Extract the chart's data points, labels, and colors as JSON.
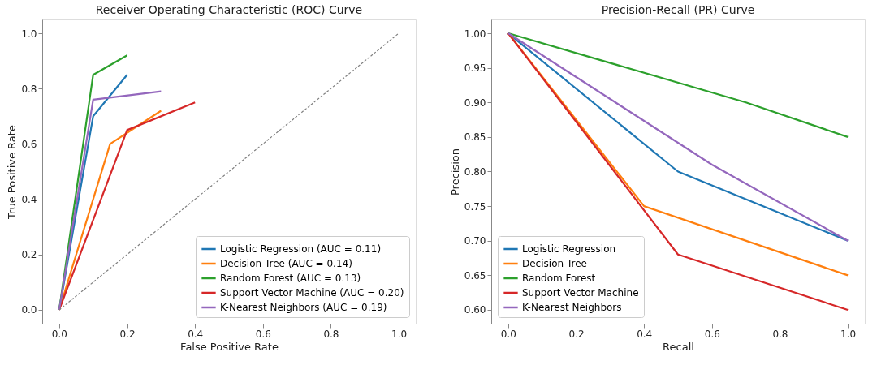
{
  "chart_data": [
    {
      "type": "line",
      "title": "Receiver Operating Characteristic (ROC) Curve",
      "xlabel": "False Positive Rate",
      "ylabel": "True Positive Rate",
      "xlim": [
        -0.05,
        1.05
      ],
      "ylim": [
        -0.05,
        1.05
      ],
      "xticks": [
        {
          "value": 0,
          "label": "0.0"
        },
        {
          "value": 0.2,
          "label": "0.2"
        },
        {
          "value": 0.4,
          "label": "0.4"
        },
        {
          "value": 0.6,
          "label": "0.6"
        },
        {
          "value": 0.8,
          "label": "0.8"
        },
        {
          "value": 1,
          "label": "1.0"
        }
      ],
      "yticks": [
        {
          "value": 0,
          "label": "0.0"
        },
        {
          "value": 0.2,
          "label": "0.2"
        },
        {
          "value": 0.4,
          "label": "0.4"
        },
        {
          "value": 0.6,
          "label": "0.6"
        },
        {
          "value": 0.8,
          "label": "0.8"
        },
        {
          "value": 1,
          "label": "1.0"
        }
      ],
      "grid": false,
      "legend": "bottom right",
      "line_style": "solid",
      "series": [
        {
          "name": "Logistic Regression (AUC = 0.11)",
          "color": "#1f77b4",
          "x": [
            0,
            0.1,
            0.2
          ],
          "values": [
            0,
            0.7,
            0.85
          ]
        },
        {
          "name": "Decision Tree (AUC = 0.14)",
          "color": "#ff7f0e",
          "x": [
            0,
            0.15,
            0.3
          ],
          "values": [
            0,
            0.6,
            0.72
          ]
        },
        {
          "name": "Random Forest (AUC = 0.13)",
          "color": "#2ca02c",
          "x": [
            0,
            0.1,
            0.2
          ],
          "values": [
            0,
            0.85,
            0.92
          ]
        },
        {
          "name": "Support Vector Machine (AUC = 0.20)",
          "color": "#d62728",
          "x": [
            0,
            0.2,
            0.4
          ],
          "values": [
            0,
            0.65,
            0.75
          ]
        },
        {
          "name": "K-Nearest Neighbors (AUC = 0.19)",
          "color": "#9467bd",
          "x": [
            0,
            0.1,
            0.3
          ],
          "values": [
            0,
            0.76,
            0.79
          ]
        },
        {
          "color": "#808080",
          "line_style": "dashed",
          "x": [
            0,
            1
          ],
          "values": [
            0,
            1
          ]
        }
      ]
    },
    {
      "type": "line",
      "title": "Precision-Recall (PR) Curve",
      "xlabel": "Recall",
      "ylabel": "Precision",
      "xlim": [
        -0.05,
        1.05
      ],
      "ylim": [
        0.58,
        1.02
      ],
      "xticks": [
        {
          "value": 0,
          "label": "0.0"
        },
        {
          "value": 0.2,
          "label": "0.2"
        },
        {
          "value": 0.4,
          "label": "0.4"
        },
        {
          "value": 0.6,
          "label": "0.6"
        },
        {
          "value": 0.8,
          "label": "0.8"
        },
        {
          "value": 1,
          "label": "1.0"
        }
      ],
      "yticks": [
        {
          "value": 0.6,
          "label": "0.60"
        },
        {
          "value": 0.65,
          "label": "0.65"
        },
        {
          "value": 0.7,
          "label": "0.70"
        },
        {
          "value": 0.75,
          "label": "0.75"
        },
        {
          "value": 0.8,
          "label": "0.80"
        },
        {
          "value": 0.85,
          "label": "0.85"
        },
        {
          "value": 0.9,
          "label": "0.90"
        },
        {
          "value": 0.95,
          "label": "0.95"
        },
        {
          "value": 1,
          "label": "1.00"
        }
      ],
      "grid": false,
      "legend": "bottom left",
      "line_style": "solid",
      "series": [
        {
          "name": "Logistic Regression",
          "color": "#1f77b4",
          "x": [
            0,
            0.5,
            1
          ],
          "values": [
            1,
            0.8,
            0.7
          ]
        },
        {
          "name": "Decision Tree",
          "color": "#ff7f0e",
          "x": [
            0,
            0.4,
            1
          ],
          "values": [
            1,
            0.75,
            0.65
          ]
        },
        {
          "name": "Random Forest",
          "color": "#2ca02c",
          "x": [
            0,
            0.7,
            1
          ],
          "values": [
            1,
            0.9,
            0.85
          ]
        },
        {
          "name": "Support Vector Machine",
          "color": "#d62728",
          "x": [
            0,
            0.5,
            1
          ],
          "values": [
            1,
            0.68,
            0.6
          ]
        },
        {
          "name": "K-Nearest Neighbors",
          "color": "#9467bd",
          "x": [
            0,
            0.6,
            1
          ],
          "values": [
            1,
            0.81,
            0.7
          ]
        }
      ]
    }
  ]
}
